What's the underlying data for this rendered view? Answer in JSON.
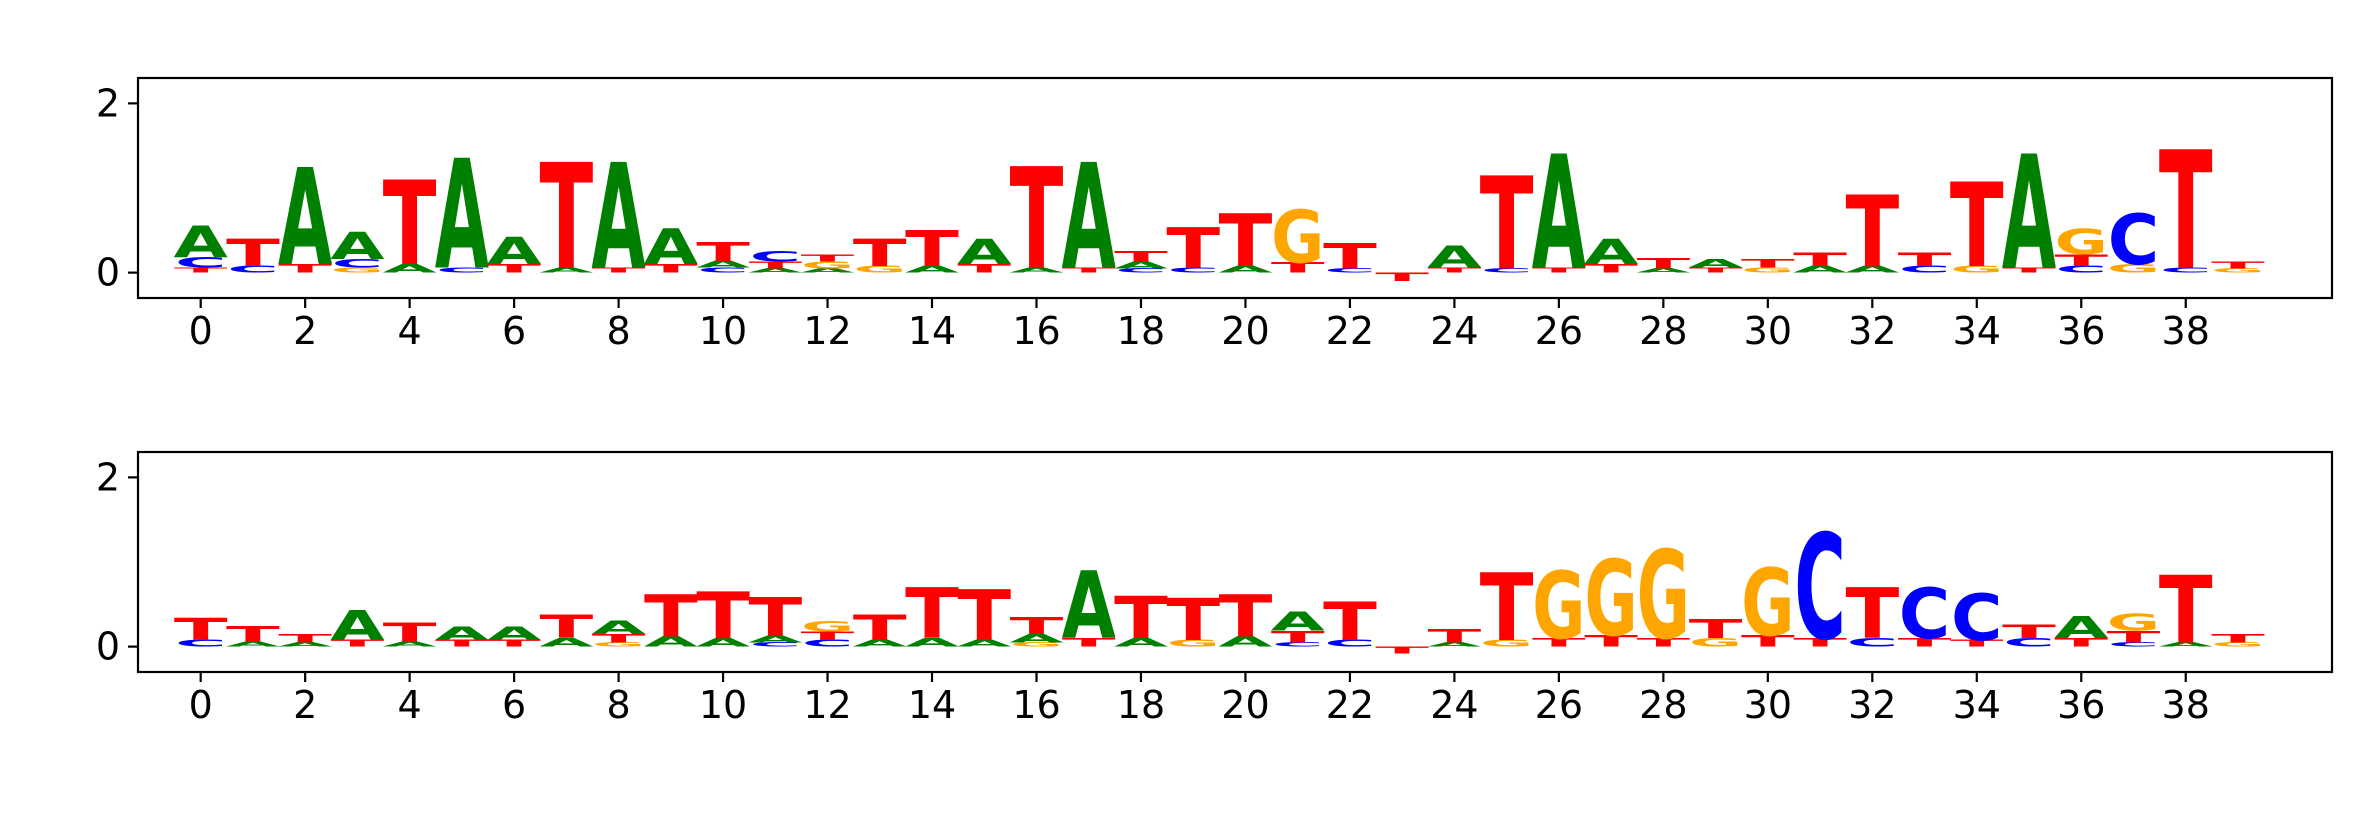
{
  "figure": {
    "background": "#ffffff"
  },
  "colors": {
    "A": "#008000",
    "C": "#0000ff",
    "G": "#ffa500",
    "T": "#ff0000"
  },
  "chart_data": [
    {
      "type": "sequence_logo",
      "name": "top",
      "title": "",
      "xlabel": "",
      "ylabel": "",
      "ylim": [
        -0.3,
        2.3
      ],
      "xlim": [
        -1.2,
        40.8
      ],
      "yticks": [
        0,
        2
      ],
      "xticks": [
        0,
        2,
        4,
        6,
        8,
        10,
        12,
        14,
        16,
        18,
        20,
        22,
        24,
        26,
        28,
        30,
        32,
        34,
        36,
        38
      ],
      "grid": false,
      "positions": [
        [
          [
            "T",
            0.06
          ],
          [
            "C",
            0.12
          ],
          [
            "A",
            0.38
          ]
        ],
        [
          [
            "C",
            0.08
          ],
          [
            "T",
            0.32
          ]
        ],
        [
          [
            "T",
            0.1
          ],
          [
            "A",
            1.15
          ]
        ],
        [
          [
            "G",
            0.06
          ],
          [
            "C",
            0.1
          ],
          [
            "A",
            0.32
          ]
        ],
        [
          [
            "A",
            0.1
          ],
          [
            "T",
            1.0
          ]
        ],
        [
          [
            "C",
            0.06
          ],
          [
            "A",
            1.3
          ]
        ],
        [
          [
            "T",
            0.1
          ],
          [
            "A",
            0.32
          ]
        ],
        [
          [
            "A",
            0.06
          ],
          [
            "T",
            1.25
          ]
        ],
        [
          [
            "T",
            0.06
          ],
          [
            "A",
            1.25
          ]
        ],
        [
          [
            "T",
            0.1
          ],
          [
            "A",
            0.42
          ]
        ],
        [
          [
            "C",
            0.06
          ],
          [
            "A",
            0.08
          ],
          [
            "T",
            0.22
          ]
        ],
        [
          [
            "A",
            0.05
          ],
          [
            "T",
            0.08
          ],
          [
            "C",
            0.12
          ]
        ],
        [
          [
            "A",
            0.05
          ],
          [
            "G",
            0.08
          ],
          [
            "T",
            0.08
          ]
        ],
        [
          [
            "G",
            0.08
          ],
          [
            "T",
            0.32
          ]
        ],
        [
          [
            "A",
            0.08
          ],
          [
            "T",
            0.42
          ]
        ],
        [
          [
            "T",
            0.1
          ],
          [
            "A",
            0.3
          ]
        ],
        [
          [
            "A",
            0.06
          ],
          [
            "T",
            1.2
          ]
        ],
        [
          [
            "T",
            0.06
          ],
          [
            "A",
            1.25
          ]
        ],
        [
          [
            "C",
            0.05
          ],
          [
            "A",
            0.08
          ],
          [
            "T",
            0.12
          ]
        ],
        [
          [
            "C",
            0.06
          ],
          [
            "T",
            0.48
          ]
        ],
        [
          [
            "A",
            0.08
          ],
          [
            "T",
            0.62
          ]
        ],
        [
          [
            "T",
            0.12
          ],
          [
            "G",
            0.62
          ]
        ],
        [
          [
            "C",
            0.05
          ],
          [
            "T",
            0.3
          ]
        ],
        [
          [
            "T",
            -0.1
          ]
        ],
        [
          [
            "T",
            0.06
          ],
          [
            "A",
            0.26
          ]
        ],
        [
          [
            "C",
            0.05
          ],
          [
            "T",
            1.1
          ]
        ],
        [
          [
            "T",
            0.06
          ],
          [
            "A",
            1.35
          ]
        ],
        [
          [
            "T",
            0.1
          ],
          [
            "A",
            0.3
          ]
        ],
        [
          [
            "A",
            0.05
          ],
          [
            "T",
            0.12
          ]
        ],
        [
          [
            "T",
            0.06
          ],
          [
            "A",
            0.1
          ]
        ],
        [
          [
            "G",
            0.06
          ],
          [
            "T",
            0.1
          ]
        ],
        [
          [
            "A",
            0.08
          ],
          [
            "T",
            0.16
          ]
        ],
        [
          [
            "A",
            0.08
          ],
          [
            "T",
            0.85
          ]
        ],
        [
          [
            "C",
            0.08
          ],
          [
            "T",
            0.16
          ]
        ],
        [
          [
            "G",
            0.08
          ],
          [
            "T",
            1.0
          ]
        ],
        [
          [
            "T",
            0.06
          ],
          [
            "A",
            1.35
          ]
        ],
        [
          [
            "C",
            0.08
          ],
          [
            "T",
            0.14
          ],
          [
            "G",
            0.3
          ]
        ],
        [
          [
            "G",
            0.1
          ],
          [
            "C",
            0.6
          ]
        ],
        [
          [
            "C",
            0.06
          ],
          [
            "T",
            1.4
          ]
        ],
        [
          [
            "G",
            0.05
          ],
          [
            "T",
            0.08
          ]
        ]
      ]
    },
    {
      "type": "sequence_logo",
      "name": "bottom",
      "title": "",
      "xlabel": "",
      "ylabel": "",
      "ylim": [
        -0.3,
        2.3
      ],
      "xlim": [
        -1.2,
        40.8
      ],
      "yticks": [
        0,
        2
      ],
      "xticks": [
        0,
        2,
        4,
        6,
        8,
        10,
        12,
        14,
        16,
        18,
        20,
        22,
        24,
        26,
        28,
        30,
        32,
        34,
        36,
        38
      ],
      "grid": false,
      "positions": [
        [
          [
            "C",
            0.08
          ],
          [
            "T",
            0.26
          ]
        ],
        [
          [
            "A",
            0.06
          ],
          [
            "T",
            0.18
          ]
        ],
        [
          [
            "A",
            0.05
          ],
          [
            "T",
            0.1
          ]
        ],
        [
          [
            "T",
            0.08
          ],
          [
            "A",
            0.35
          ]
        ],
        [
          [
            "A",
            0.06
          ],
          [
            "T",
            0.22
          ]
        ],
        [
          [
            "T",
            0.08
          ],
          [
            "A",
            0.16
          ]
        ],
        [
          [
            "T",
            0.08
          ],
          [
            "A",
            0.16
          ]
        ],
        [
          [
            "A",
            0.1
          ],
          [
            "T",
            0.28
          ]
        ],
        [
          [
            "G",
            0.05
          ],
          [
            "T",
            0.1
          ],
          [
            "A",
            0.16
          ]
        ],
        [
          [
            "A",
            0.12
          ],
          [
            "T",
            0.5
          ]
        ],
        [
          [
            "A",
            0.1
          ],
          [
            "T",
            0.55
          ]
        ],
        [
          [
            "C",
            0.05
          ],
          [
            "A",
            0.08
          ],
          [
            "T",
            0.45
          ]
        ],
        [
          [
            "C",
            0.08
          ],
          [
            "T",
            0.1
          ],
          [
            "G",
            0.12
          ]
        ],
        [
          [
            "A",
            0.08
          ],
          [
            "T",
            0.3
          ]
        ],
        [
          [
            "A",
            0.1
          ],
          [
            "T",
            0.6
          ]
        ],
        [
          [
            "A",
            0.08
          ],
          [
            "T",
            0.6
          ]
        ],
        [
          [
            "G",
            0.05
          ],
          [
            "A",
            0.1
          ],
          [
            "T",
            0.2
          ]
        ],
        [
          [
            "T",
            0.1
          ],
          [
            "A",
            0.8
          ]
        ],
        [
          [
            "A",
            0.1
          ],
          [
            "T",
            0.5
          ]
        ],
        [
          [
            "G",
            0.08
          ],
          [
            "T",
            0.5
          ]
        ],
        [
          [
            "A",
            0.12
          ],
          [
            "T",
            0.5
          ]
        ],
        [
          [
            "C",
            0.05
          ],
          [
            "T",
            0.14
          ],
          [
            "A",
            0.22
          ]
        ],
        [
          [
            "C",
            0.08
          ],
          [
            "T",
            0.45
          ]
        ],
        [
          [
            "T",
            -0.08
          ]
        ],
        [
          [
            "A",
            0.05
          ],
          [
            "T",
            0.16
          ]
        ],
        [
          [
            "G",
            0.08
          ],
          [
            "T",
            0.8
          ]
        ],
        [
          [
            "T",
            0.1
          ],
          [
            "G",
            0.8
          ]
        ],
        [
          [
            "T",
            0.14
          ],
          [
            "G",
            0.9
          ]
        ],
        [
          [
            "T",
            0.1
          ],
          [
            "G",
            1.05
          ]
        ],
        [
          [
            "G",
            0.1
          ],
          [
            "T",
            0.22
          ]
        ],
        [
          [
            "T",
            0.14
          ],
          [
            "G",
            0.8
          ]
        ],
        [
          [
            "T",
            0.1
          ],
          [
            "C",
            1.25
          ]
        ],
        [
          [
            "C",
            0.1
          ],
          [
            "T",
            0.6
          ]
        ],
        [
          [
            "T",
            0.1
          ],
          [
            "C",
            0.6
          ]
        ],
        [
          [
            "T",
            0.08
          ],
          [
            "C",
            0.55
          ]
        ],
        [
          [
            "C",
            0.1
          ],
          [
            "T",
            0.16
          ]
        ],
        [
          [
            "T",
            0.1
          ],
          [
            "A",
            0.26
          ]
        ],
        [
          [
            "C",
            0.05
          ],
          [
            "T",
            0.14
          ],
          [
            "G",
            0.2
          ]
        ],
        [
          [
            "A",
            0.05
          ],
          [
            "T",
            0.8
          ]
        ],
        [
          [
            "G",
            0.05
          ],
          [
            "T",
            0.1
          ]
        ]
      ]
    }
  ]
}
